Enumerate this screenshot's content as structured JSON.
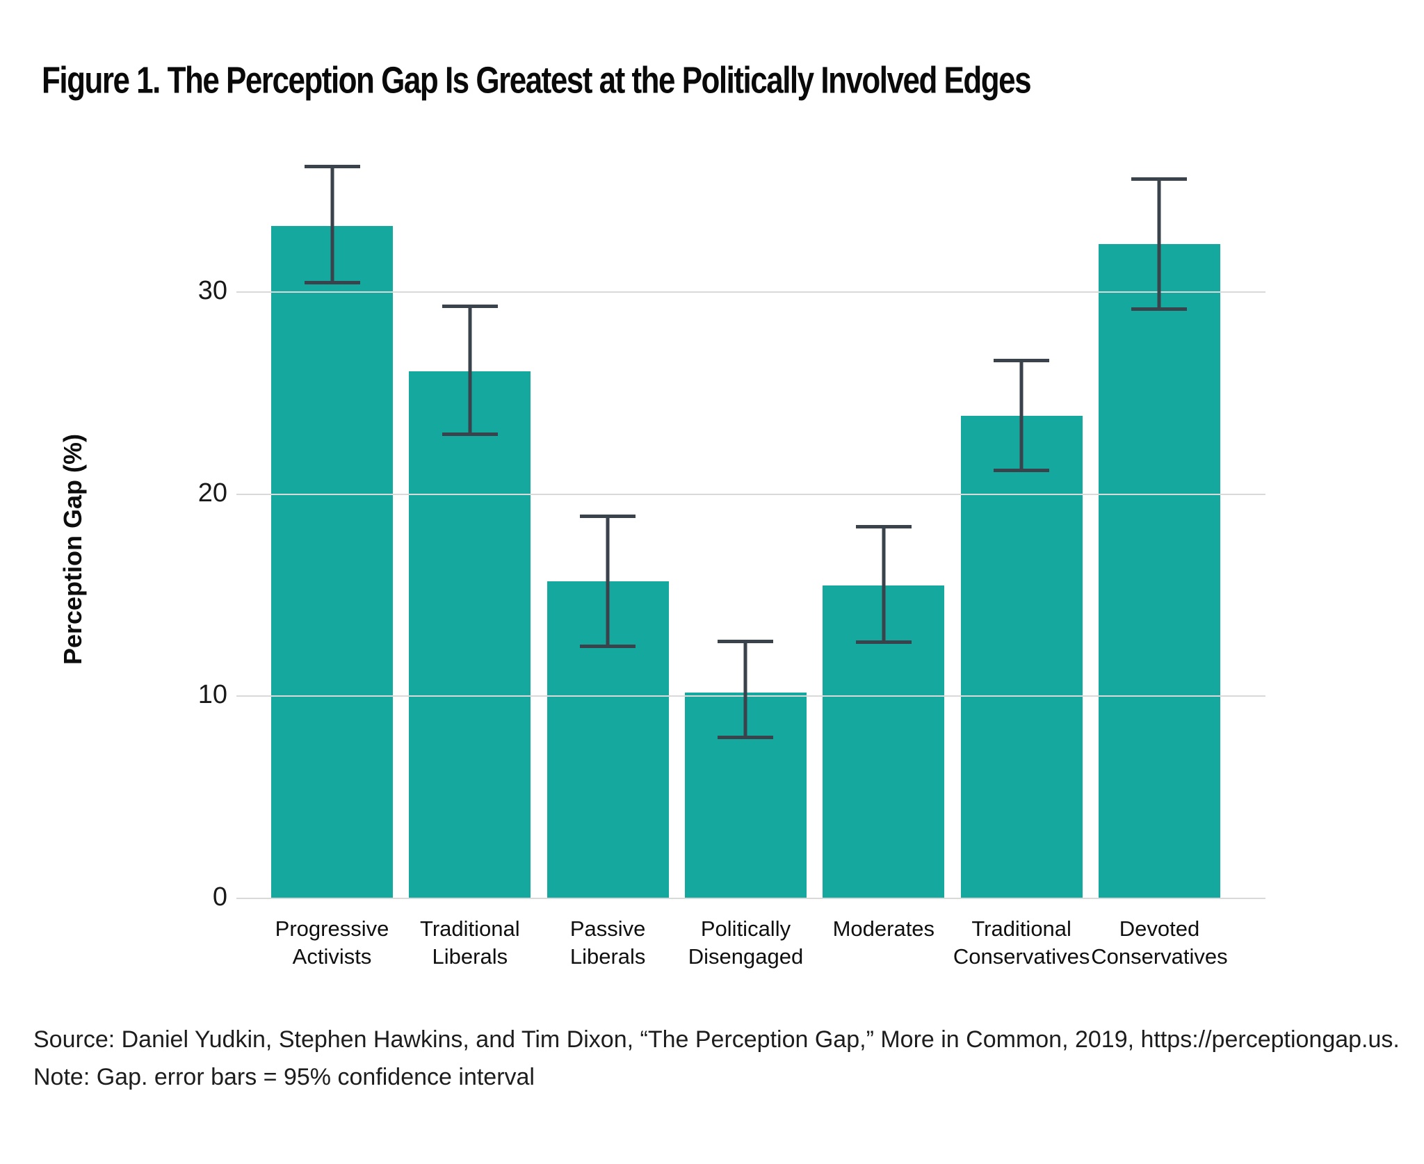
{
  "figure": {
    "title": "Figure 1. The Perception Gap Is Greatest at the Politically Involved Edges",
    "source": "Source: Daniel Yudkin, Stephen Hawkins, and Tim Dixon, “The Perception Gap,” More in Common, 2019, https://perceptiongap.us.",
    "note": "Note: Gap. error bars = 95% confidence interval"
  },
  "chart_data": {
    "type": "bar",
    "title": "Figure 1. The Perception Gap Is Greatest at the Politically Involved Edges",
    "xlabel": "",
    "ylabel": "Perception Gap (%)",
    "ylim": [
      0,
      36.9
    ],
    "yticks": [
      0,
      10,
      20,
      30
    ],
    "grid": "horizontal",
    "legend": "none",
    "bar_color": "#14a89e",
    "error_bar_color": "#3a424b",
    "gridline_color": "#d9d9d9",
    "error_bar_meaning": "95% confidence interval",
    "categories": [
      "Progressive Activists",
      "Traditional Liberals",
      "Passive Liberals",
      "Politically Disengaged",
      "Moderates",
      "Traditional Conservatives",
      "Devoted Conservatives"
    ],
    "category_label_lines": [
      [
        "Progressive",
        "Activists"
      ],
      [
        "Traditional",
        "Liberals"
      ],
      [
        "Passive",
        "Liberals"
      ],
      [
        "Politically",
        "Disengaged"
      ],
      [
        "Moderates"
      ],
      [
        "Traditional",
        "Conservatives"
      ],
      [
        "Devoted",
        "Conservatives"
      ]
    ],
    "values": [
      33.3,
      26.1,
      15.7,
      10.2,
      15.5,
      23.9,
      32.4
    ],
    "ci_low": [
      30.4,
      22.9,
      12.4,
      7.9,
      12.6,
      21.1,
      29.1
    ],
    "ci_high": [
      36.3,
      29.4,
      19.0,
      12.8,
      18.5,
      26.7,
      35.7
    ]
  }
}
